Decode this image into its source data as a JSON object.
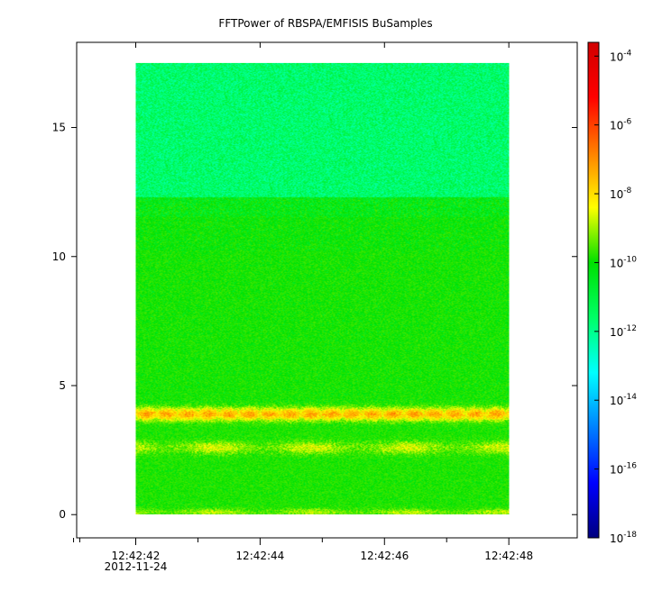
{
  "chart_data": {
    "type": "heatmap",
    "title": "FFTPower of RBSPA/EMFISIS  BuSamples",
    "xlabel": "",
    "ylabel": "",
    "x_ticks": [
      {
        "label": "12:42:42",
        "sublabel": "2012-11-24",
        "value": 42
      },
      {
        "label": "12:42:44",
        "value": 44
      },
      {
        "label": "12:42:46",
        "value": 46
      },
      {
        "label": "12:42:48",
        "value": 48
      }
    ],
    "x_minor_ticks": [
      41,
      43,
      45,
      47
    ],
    "xlim": [
      41.05,
      49.1
    ],
    "data_x_range": [
      42.0,
      48.0
    ],
    "y_ticks": [
      0,
      5,
      10,
      15
    ],
    "ylim": [
      -0.9,
      18.3
    ],
    "data_y_range": [
      0,
      17.5
    ],
    "colorbar": {
      "scale": "log",
      "range_exponent": [
        -18,
        -3.6
      ],
      "ticks": [
        {
          "base": "10",
          "exp": "-4",
          "value": -4
        },
        {
          "base": "10",
          "exp": "-6",
          "value": -6
        },
        {
          "base": "10",
          "exp": "-8",
          "value": -8
        },
        {
          "base": "10",
          "exp": "-10",
          "value": -10
        },
        {
          "base": "10",
          "exp": "-12",
          "value": -12
        },
        {
          "base": "10",
          "exp": "-14",
          "value": -14
        },
        {
          "base": "10",
          "exp": "-16",
          "value": -16
        },
        {
          "base": "10",
          "exp": "-18",
          "value": -18
        }
      ],
      "colors": [
        "#00007f",
        "#0000ff",
        "#0080ff",
        "#00ffff",
        "#00ff66",
        "#00e000",
        "#ffff00",
        "#ff8000",
        "#ff0000",
        "#d00000"
      ]
    },
    "structure": {
      "background_exponent_low_band": -10.3,
      "background_exponent_high_band": -11.6,
      "band_boundary_y": 12.3,
      "bright_bands": [
        {
          "y": 3.9,
          "peak_exponent": -7.2
        },
        {
          "y": 2.6,
          "peak_exponent": -8.6
        },
        {
          "y": 0.1,
          "peak_exponent": -8.8
        }
      ]
    }
  }
}
